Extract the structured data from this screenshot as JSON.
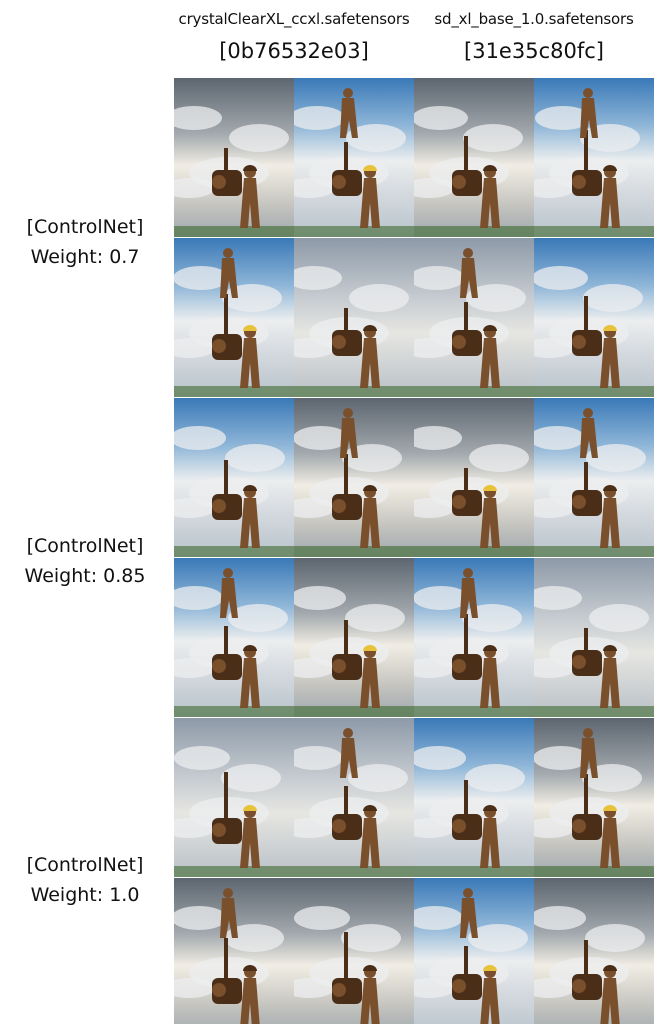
{
  "columns": [
    {
      "model": "crystalClearXL_ccxl.safetensors",
      "hash": "[0b76532e03]"
    },
    {
      "model": "sd_xl_base_1.0.safetensors",
      "hash": "[31e35c80fc]"
    }
  ],
  "rows": [
    {
      "line1": "[ControlNet]",
      "line2": "Weight: 0.7"
    },
    {
      "line1": "[ControlNet]",
      "line2": "Weight: 0.85"
    },
    {
      "line1": "[ControlNet]",
      "line2": "Weight: 1.0"
    }
  ],
  "images": {
    "subject": "bronze statue of workers with machine under cloudy sky",
    "grid_rows": 6,
    "grid_cols": 4
  },
  "colors": {
    "bronze": "#7a4f2c",
    "bronze_dark": "#4a2e18",
    "sky_blue": "#3a79b8",
    "cloud": "#eceeef",
    "helmet": "#e8c23a",
    "ground": "#3f6a2e"
  }
}
